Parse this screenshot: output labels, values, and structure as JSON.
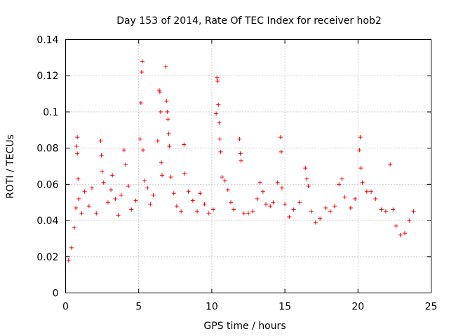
{
  "chart_data": {
    "type": "scatter",
    "title": "Day 153 of 2014, Rate Of TEC Index for receiver hob2",
    "xlabel": "GPS time / hours",
    "ylabel": "ROTI / TECUs",
    "xlim": [
      0,
      25
    ],
    "ylim": [
      0,
      0.14
    ],
    "grid": true,
    "marker": "plus",
    "series_color": "#ff0000",
    "x_ticks": [
      0,
      5,
      10,
      15,
      20,
      25
    ],
    "x_tick_labels": [
      "0",
      "5",
      "10",
      "15",
      "20",
      "25"
    ],
    "y_ticks": [
      0,
      0.02,
      0.04,
      0.06,
      0.08,
      0.1,
      0.12,
      0.14
    ],
    "y_tick_labels": [
      "0",
      "0.02",
      "0.04",
      "0.06",
      "0.08",
      "0.1",
      "0.12",
      "0.14"
    ],
    "series": [
      {
        "name": "ROTI",
        "points": [
          [
            0.2,
            0.018
          ],
          [
            0.4,
            0.025
          ],
          [
            0.6,
            0.036
          ],
          [
            0.7,
            0.047
          ],
          [
            0.75,
            0.081
          ],
          [
            0.8,
            0.086
          ],
          [
            0.8,
            0.077
          ],
          [
            0.85,
            0.063
          ],
          [
            0.9,
            0.052
          ],
          [
            1.1,
            0.044
          ],
          [
            1.3,
            0.056
          ],
          [
            1.6,
            0.048
          ],
          [
            1.8,
            0.058
          ],
          [
            2.1,
            0.044
          ],
          [
            2.4,
            0.084
          ],
          [
            2.45,
            0.076
          ],
          [
            2.5,
            0.067
          ],
          [
            2.6,
            0.061
          ],
          [
            2.9,
            0.05
          ],
          [
            3.1,
            0.057
          ],
          [
            3.2,
            0.065
          ],
          [
            3.4,
            0.052
          ],
          [
            3.6,
            0.043
          ],
          [
            3.8,
            0.054
          ],
          [
            4.0,
            0.079
          ],
          [
            4.1,
            0.071
          ],
          [
            4.3,
            0.059
          ],
          [
            4.5,
            0.046
          ],
          [
            4.8,
            0.051
          ],
          [
            5.1,
            0.085
          ],
          [
            5.15,
            0.105
          ],
          [
            5.2,
            0.122
          ],
          [
            5.25,
            0.128
          ],
          [
            5.3,
            0.079
          ],
          [
            5.4,
            0.062
          ],
          [
            5.6,
            0.058
          ],
          [
            5.8,
            0.049
          ],
          [
            6.0,
            0.054
          ],
          [
            6.3,
            0.084
          ],
          [
            6.4,
            0.112
          ],
          [
            6.45,
            0.111
          ],
          [
            6.5,
            0.1
          ],
          [
            6.55,
            0.072
          ],
          [
            6.6,
            0.065
          ],
          [
            6.85,
            0.125
          ],
          [
            6.9,
            0.106
          ],
          [
            6.95,
            0.1
          ],
          [
            7.0,
            0.096
          ],
          [
            7.05,
            0.088
          ],
          [
            7.1,
            0.081
          ],
          [
            7.2,
            0.064
          ],
          [
            7.4,
            0.055
          ],
          [
            7.6,
            0.048
          ],
          [
            7.9,
            0.045
          ],
          [
            8.1,
            0.082
          ],
          [
            8.15,
            0.066
          ],
          [
            8.4,
            0.056
          ],
          [
            8.7,
            0.051
          ],
          [
            9.0,
            0.045
          ],
          [
            9.2,
            0.055
          ],
          [
            9.5,
            0.049
          ],
          [
            9.8,
            0.044
          ],
          [
            10.1,
            0.046
          ],
          [
            10.3,
            0.099
          ],
          [
            10.35,
            0.119
          ],
          [
            10.4,
            0.117
          ],
          [
            10.45,
            0.104
          ],
          [
            10.5,
            0.094
          ],
          [
            10.55,
            0.085
          ],
          [
            10.6,
            0.078
          ],
          [
            10.7,
            0.064
          ],
          [
            10.9,
            0.062
          ],
          [
            11.1,
            0.057
          ],
          [
            11.3,
            0.05
          ],
          [
            11.5,
            0.046
          ],
          [
            11.9,
            0.085
          ],
          [
            11.95,
            0.077
          ],
          [
            12.0,
            0.073
          ],
          [
            12.2,
            0.044
          ],
          [
            12.5,
            0.044
          ],
          [
            12.8,
            0.045
          ],
          [
            13.1,
            0.052
          ],
          [
            13.3,
            0.061
          ],
          [
            13.5,
            0.056
          ],
          [
            13.7,
            0.049
          ],
          [
            14.0,
            0.048
          ],
          [
            14.2,
            0.05
          ],
          [
            14.5,
            0.061
          ],
          [
            14.7,
            0.086
          ],
          [
            14.75,
            0.078
          ],
          [
            14.8,
            0.058
          ],
          [
            15.0,
            0.049
          ],
          [
            15.3,
            0.042
          ],
          [
            15.6,
            0.046
          ],
          [
            16.0,
            0.05
          ],
          [
            16.4,
            0.069
          ],
          [
            16.5,
            0.063
          ],
          [
            16.6,
            0.059
          ],
          [
            16.8,
            0.045
          ],
          [
            17.1,
            0.039
          ],
          [
            17.4,
            0.041
          ],
          [
            17.8,
            0.047
          ],
          [
            18.1,
            0.045
          ],
          [
            18.4,
            0.048
          ],
          [
            18.7,
            0.06
          ],
          [
            18.9,
            0.063
          ],
          [
            19.1,
            0.053
          ],
          [
            19.5,
            0.047
          ],
          [
            19.8,
            0.052
          ],
          [
            20.1,
            0.079
          ],
          [
            20.15,
            0.086
          ],
          [
            20.2,
            0.069
          ],
          [
            20.3,
            0.061
          ],
          [
            20.6,
            0.056
          ],
          [
            20.9,
            0.056
          ],
          [
            21.2,
            0.052
          ],
          [
            21.6,
            0.046
          ],
          [
            21.9,
            0.045
          ],
          [
            22.2,
            0.071
          ],
          [
            22.4,
            0.046
          ],
          [
            22.6,
            0.037
          ],
          [
            22.9,
            0.032
          ],
          [
            23.2,
            0.033
          ],
          [
            23.5,
            0.04
          ],
          [
            23.8,
            0.045
          ]
        ]
      }
    ]
  }
}
